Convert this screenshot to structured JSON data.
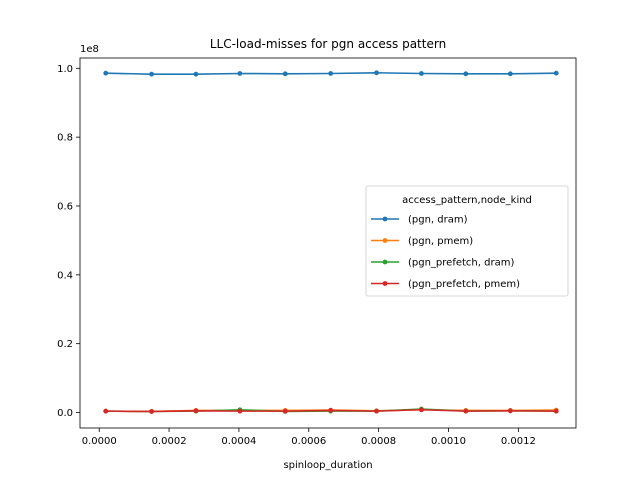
{
  "chart_data": {
    "type": "line",
    "title": "LLC-load-misses for pgn access pattern",
    "xlabel": "spinloop_duration",
    "ylabel": "",
    "y_offset_label": "1e8",
    "xlim": [
      -5.5e-05,
      0.001365
    ],
    "ylim": [
      -0.045,
      1.03
    ],
    "y_scale_note": "values in units of 1e8",
    "x_ticks": [
      0.0,
      0.0002,
      0.0004,
      0.0006,
      0.0008,
      0.001,
      0.0012
    ],
    "x_tick_labels": [
      "0.0000",
      "0.0002",
      "0.0004",
      "0.0006",
      "0.0008",
      "0.0010",
      "0.0012"
    ],
    "y_ticks": [
      0.0,
      0.2,
      0.4,
      0.6,
      0.8,
      1.0
    ],
    "y_tick_labels": [
      "0.0",
      "0.2",
      "0.4",
      "0.6",
      "0.8",
      "1.0"
    ],
    "grid": false,
    "legend": {
      "title": "access_pattern,node_kind",
      "placement": "center-right"
    },
    "x": [
      1.87e-05,
      0.0001499,
      0.000277,
      0.0004027,
      0.0005326,
      0.0006627,
      0.0007939,
      0.0009224,
      0.0010496,
      0.001177,
      0.0013084
    ],
    "series": [
      {
        "name": "(pgn, dram)",
        "color": "#1f77b4",
        "values": [
          0.986,
          0.983,
          0.983,
          0.985,
          0.984,
          0.985,
          0.987,
          0.985,
          0.984,
          0.984,
          0.986
        ]
      },
      {
        "name": "(pgn, pmem)",
        "color": "#ff7f0e",
        "values": [
          0.004,
          0.003,
          0.006,
          0.006,
          0.006,
          0.007,
          0.005,
          0.008,
          0.006,
          0.006,
          0.007
        ]
      },
      {
        "name": "(pgn_prefetch, dram)",
        "color": "#2ca02c",
        "values": [
          0.004,
          0.003,
          0.004,
          0.008,
          0.003,
          0.004,
          0.004,
          0.01,
          0.004,
          0.005,
          0.004
        ]
      },
      {
        "name": "(pgn_prefetch, pmem)",
        "color": "#d62728",
        "values": [
          0.004,
          0.003,
          0.005,
          0.004,
          0.004,
          0.006,
          0.004,
          0.008,
          0.004,
          0.005,
          0.004
        ]
      }
    ]
  }
}
